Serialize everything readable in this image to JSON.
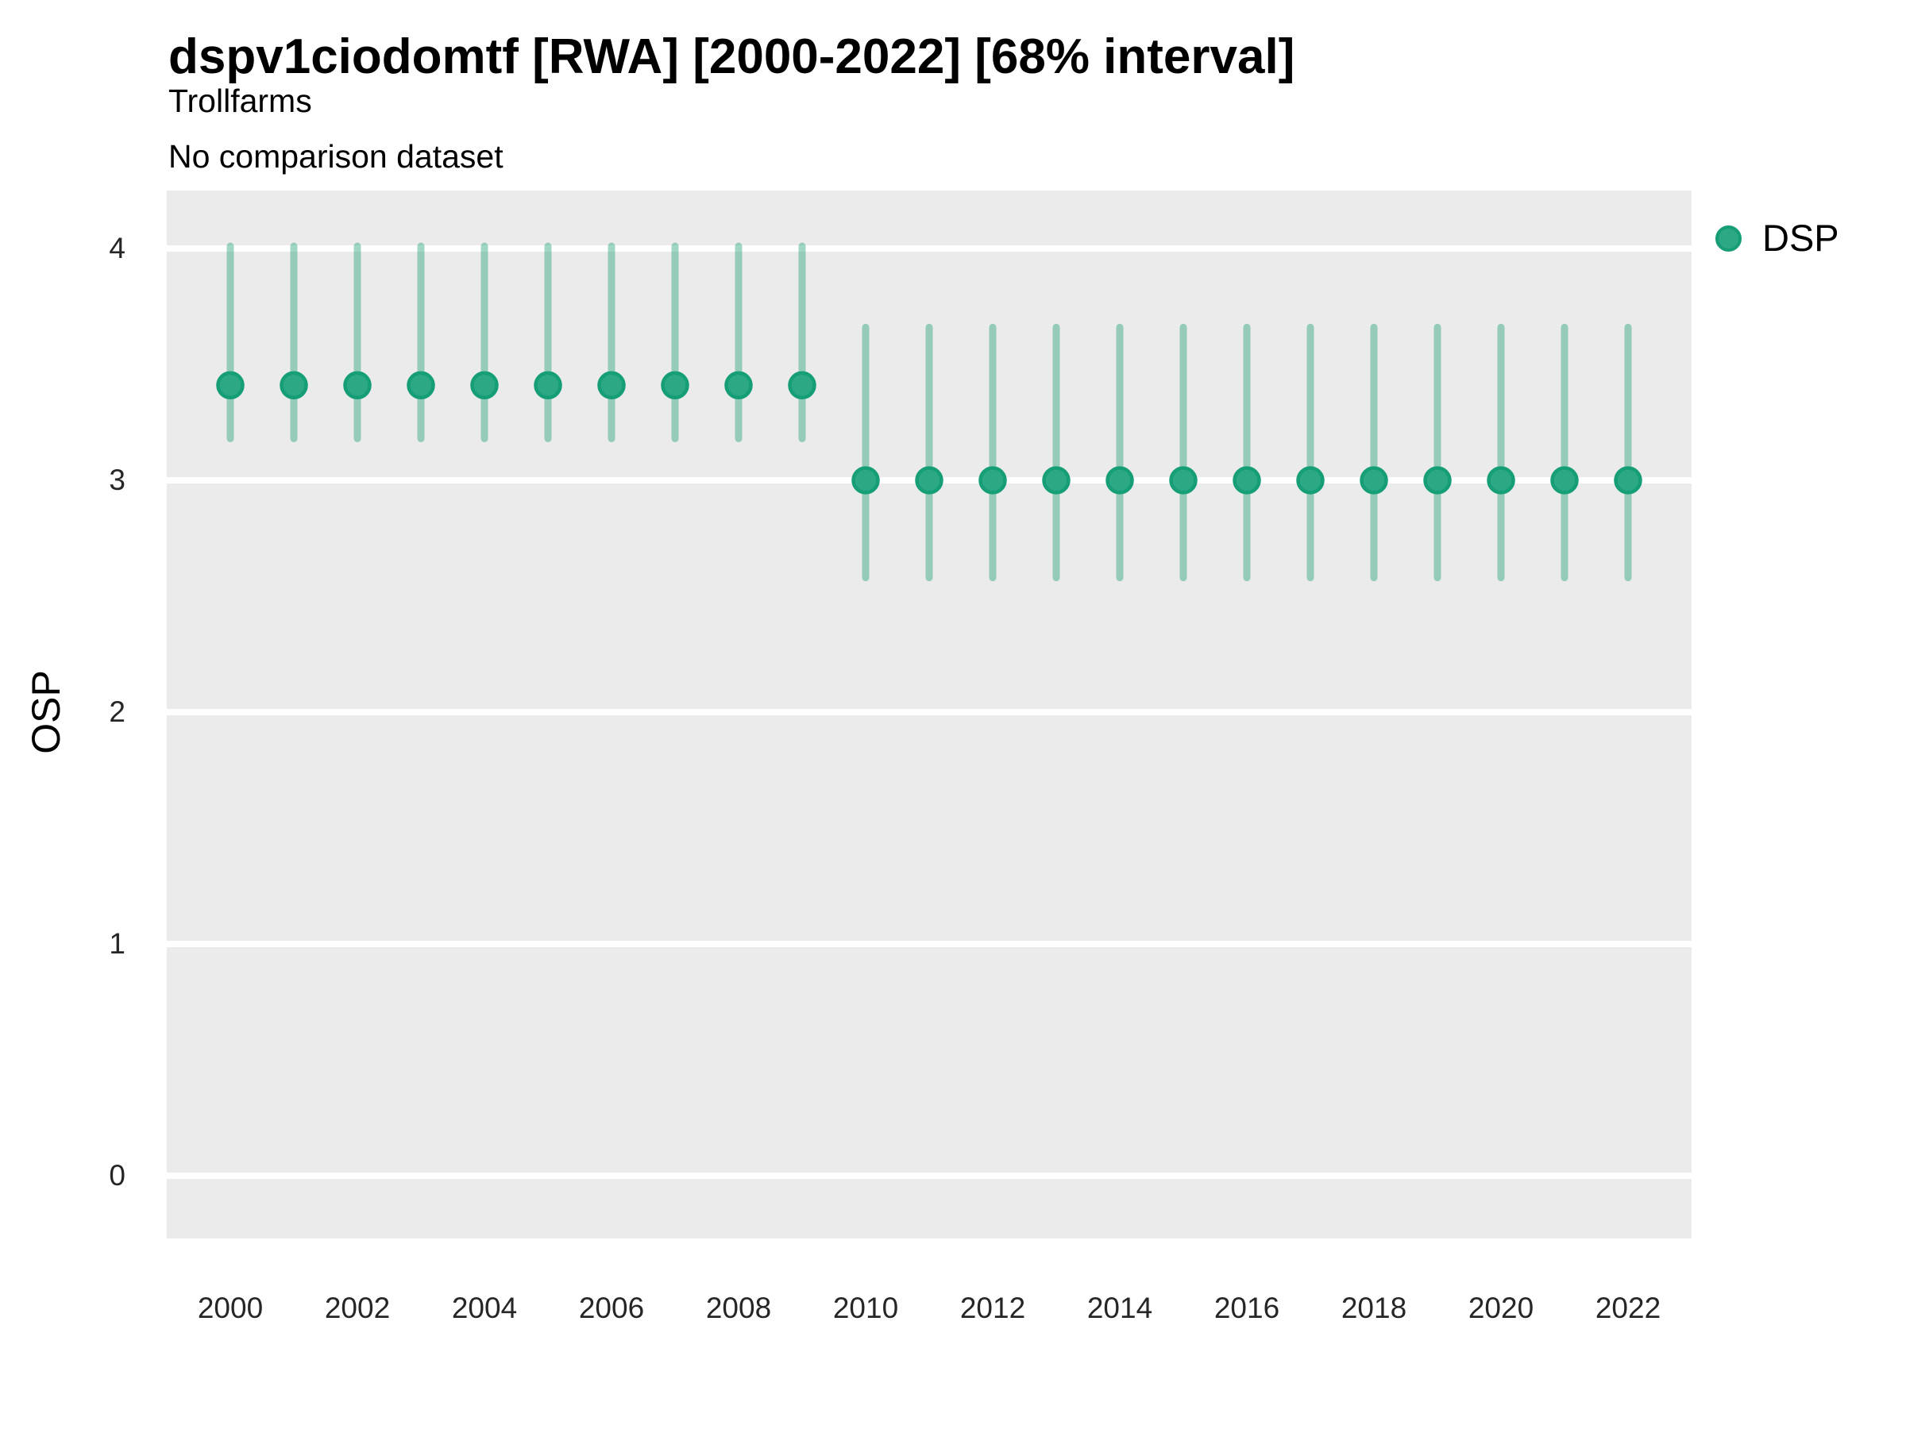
{
  "header": {
    "title": "dspv1ciodomtf [RWA] [2000-2022] [68% interval]",
    "subtitle": "Trollfarms",
    "note": "No comparison dataset"
  },
  "axes": {
    "y": {
      "label": "OSP",
      "ticks": [
        4,
        3,
        2,
        1,
        0
      ]
    },
    "x": {
      "ticks": [
        2000,
        2002,
        2004,
        2006,
        2008,
        2010,
        2012,
        2014,
        2016,
        2018,
        2020,
        2022
      ]
    }
  },
  "legend": {
    "position": "right-top",
    "items": [
      {
        "label": "DSP",
        "marker": "circle"
      }
    ]
  },
  "colors": {
    "panel_background": "#EBEBEB",
    "gridline": "#FFFFFF",
    "point_fill": "#2CA884",
    "point_stroke": "#169E76",
    "interval_line": "rgba(44,166,124,0.45)",
    "title_text": "#000000",
    "tick_text": "#262626"
  },
  "chart_data": {
    "type": "pointrange",
    "title": "dspv1ciodomtf [RWA] [2000-2022] [68% interval]",
    "subtitle": "Trollfarms",
    "note": "No comparison dataset",
    "interval_level": "68%",
    "xlabel": "",
    "ylabel": "OSP",
    "ylim": [
      -0.27,
      4.26
    ],
    "x_tick_labels": [
      2000,
      2002,
      2004,
      2006,
      2008,
      2010,
      2012,
      2014,
      2016,
      2018,
      2020,
      2022
    ],
    "y_tick_labels": [
      0,
      1,
      2,
      3,
      4
    ],
    "grid": "horizontal-major-only",
    "legend_position": "right-top",
    "series": [
      {
        "name": "DSP",
        "x": [
          2000,
          2001,
          2002,
          2003,
          2004,
          2005,
          2006,
          2007,
          2008,
          2009,
          2010,
          2011,
          2012,
          2013,
          2014,
          2015,
          2016,
          2017,
          2018,
          2019,
          2020,
          2021,
          2022
        ],
        "estimate": [
          3.41,
          3.41,
          3.41,
          3.41,
          3.41,
          3.41,
          3.41,
          3.41,
          3.41,
          3.41,
          3.0,
          3.0,
          3.0,
          3.0,
          3.0,
          3.0,
          3.0,
          3.0,
          3.0,
          3.0,
          3.0,
          3.0,
          3.0
        ],
        "lower": [
          3.18,
          3.18,
          3.18,
          3.18,
          3.18,
          3.18,
          3.18,
          3.18,
          3.18,
          3.18,
          2.58,
          2.58,
          2.58,
          2.58,
          2.58,
          2.58,
          2.58,
          2.58,
          2.58,
          2.58,
          2.58,
          2.58,
          2.58
        ],
        "upper": [
          4.01,
          4.01,
          4.01,
          4.01,
          4.01,
          4.01,
          4.01,
          4.01,
          4.01,
          4.01,
          3.66,
          3.66,
          3.66,
          3.66,
          3.66,
          3.66,
          3.66,
          3.66,
          3.66,
          3.66,
          3.66,
          3.66,
          3.66
        ]
      }
    ]
  }
}
